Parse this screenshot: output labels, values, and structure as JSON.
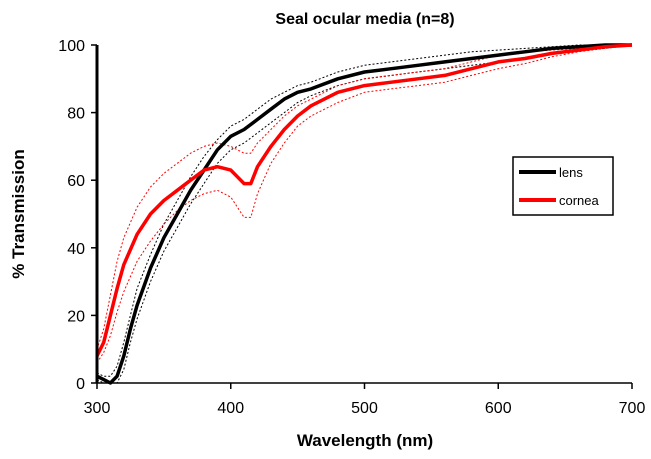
{
  "chart_data": {
    "type": "line",
    "title": "Seal ocular media (n=8)",
    "xlabel": "Wavelength (nm)",
    "ylabel": "% Transmission",
    "xlim": [
      300,
      700
    ],
    "ylim": [
      0,
      100
    ],
    "xticks": [
      300,
      400,
      500,
      600,
      700
    ],
    "yticks": [
      0,
      20,
      40,
      60,
      80,
      100
    ],
    "grid": false,
    "legend_position": "right",
    "series": [
      {
        "name": "lens",
        "color": "#000000",
        "style": "solid",
        "x": [
          300,
          305,
          310,
          315,
          320,
          325,
          330,
          340,
          350,
          360,
          370,
          380,
          390,
          400,
          410,
          420,
          430,
          440,
          450,
          460,
          480,
          500,
          520,
          540,
          560,
          580,
          600,
          620,
          640,
          660,
          680,
          700
        ],
        "values": [
          2,
          1,
          0,
          2,
          8,
          16,
          23,
          34,
          43,
          50,
          57,
          63,
          69,
          73,
          75,
          78,
          81,
          84,
          86,
          87,
          90,
          92,
          93,
          94,
          95,
          96,
          97,
          98,
          99,
          99.5,
          100,
          100
        ]
      },
      {
        "name": "lens upper bound",
        "color": "#000000",
        "style": "dotted",
        "x": [
          300,
          305,
          310,
          315,
          320,
          325,
          330,
          340,
          350,
          360,
          370,
          380,
          390,
          400,
          410,
          420,
          430,
          440,
          450,
          460,
          480,
          500,
          520,
          540,
          560,
          580,
          600,
          620,
          640,
          660,
          680,
          700
        ],
        "values": [
          3,
          2,
          2,
          5,
          12,
          20,
          28,
          38,
          47,
          54,
          61,
          67,
          72,
          76,
          78,
          81,
          84,
          86,
          88,
          89,
          92,
          94,
          95,
          96,
          97,
          98,
          98.5,
          99,
          99.5,
          100,
          100,
          100
        ]
      },
      {
        "name": "lens lower bound",
        "color": "#000000",
        "style": "dotted",
        "x": [
          300,
          305,
          310,
          315,
          320,
          325,
          330,
          340,
          350,
          360,
          370,
          380,
          390,
          400,
          410,
          420,
          430,
          440,
          450,
          460,
          480,
          500,
          520,
          540,
          560,
          580,
          600,
          620,
          640,
          660,
          680,
          700
        ],
        "values": [
          1,
          0,
          0,
          0,
          4,
          12,
          19,
          30,
          39,
          46,
          53,
          59,
          65,
          69,
          71,
          74,
          77,
          80,
          83,
          85,
          88,
          90,
          91,
          92,
          93,
          94,
          95,
          96,
          97.5,
          98.5,
          99,
          100
        ]
      },
      {
        "name": "cornea",
        "color": "#ff0000",
        "style": "solid",
        "x": [
          300,
          305,
          310,
          315,
          320,
          330,
          340,
          350,
          360,
          370,
          380,
          390,
          400,
          405,
          410,
          415,
          420,
          430,
          440,
          450,
          460,
          480,
          500,
          520,
          540,
          560,
          580,
          600,
          620,
          640,
          660,
          680,
          700
        ],
        "values": [
          8,
          12,
          20,
          28,
          35,
          44,
          50,
          54,
          57,
          60,
          63,
          64,
          63,
          61,
          59,
          59,
          64,
          70,
          75,
          79,
          82,
          86,
          88,
          89,
          90,
          91,
          93,
          95,
          96,
          97.5,
          98.5,
          99.5,
          100
        ]
      },
      {
        "name": "cornea upper bound",
        "color": "#ff0000",
        "style": "dotted",
        "x": [
          300,
          305,
          310,
          315,
          320,
          330,
          340,
          350,
          360,
          370,
          380,
          390,
          400,
          405,
          410,
          415,
          420,
          430,
          440,
          450,
          460,
          480,
          500,
          520,
          540,
          560,
          580,
          600,
          620,
          640,
          660,
          680,
          700
        ],
        "values": [
          10,
          16,
          26,
          36,
          43,
          52,
          58,
          62,
          65,
          68,
          70,
          71,
          70,
          69,
          68,
          68,
          71,
          75,
          79,
          82,
          84,
          88,
          90,
          91,
          92,
          93,
          95,
          97,
          98,
          98.5,
          99,
          99.5,
          100
        ]
      },
      {
        "name": "cornea lower bound",
        "color": "#ff0000",
        "style": "dotted",
        "x": [
          300,
          305,
          310,
          315,
          320,
          330,
          340,
          350,
          360,
          370,
          380,
          390,
          400,
          405,
          410,
          415,
          420,
          430,
          440,
          450,
          460,
          480,
          500,
          520,
          540,
          560,
          580,
          600,
          620,
          640,
          660,
          680,
          700
        ],
        "values": [
          6,
          9,
          14,
          21,
          27,
          36,
          42,
          47,
          51,
          54,
          56,
          57,
          55,
          52,
          49,
          49,
          56,
          65,
          71,
          76,
          79,
          83,
          86,
          87,
          88,
          89,
          91,
          93,
          94.5,
          96.5,
          98,
          99,
          100
        ]
      }
    ],
    "legend": [
      {
        "label": "lens",
        "color": "#000000"
      },
      {
        "label": "cornea",
        "color": "#ff0000"
      }
    ]
  }
}
